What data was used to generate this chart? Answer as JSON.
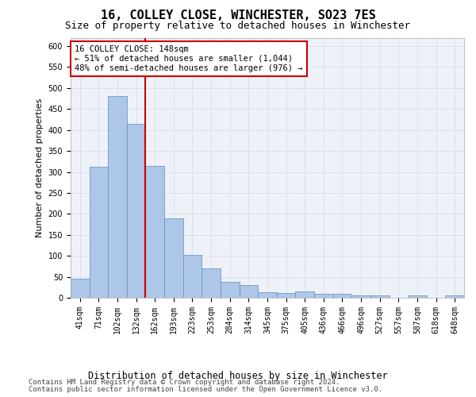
{
  "title": "16, COLLEY CLOSE, WINCHESTER, SO23 7ES",
  "subtitle": "Size of property relative to detached houses in Winchester",
  "xlabel": "Distribution of detached houses by size in Winchester",
  "ylabel": "Number of detached properties",
  "property_label": "16 COLLEY CLOSE: 148sqm",
  "annotation_line1": "← 51% of detached houses are smaller (1,044)",
  "annotation_line2": "48% of semi-detached houses are larger (976) →",
  "footer_line1": "Contains HM Land Registry data © Crown copyright and database right 2024.",
  "footer_line2": "Contains public sector information licensed under the Open Government Licence v3.0.",
  "bin_labels": [
    "41sqm",
    "71sqm",
    "102sqm",
    "132sqm",
    "162sqm",
    "193sqm",
    "223sqm",
    "253sqm",
    "284sqm",
    "314sqm",
    "345sqm",
    "375sqm",
    "405sqm",
    "436sqm",
    "466sqm",
    "496sqm",
    "527sqm",
    "557sqm",
    "587sqm",
    "618sqm",
    "648sqm"
  ],
  "bin_values": [
    46,
    312,
    480,
    415,
    314,
    190,
    103,
    70,
    37,
    30,
    14,
    12,
    15,
    10,
    9,
    5,
    5,
    0,
    5,
    0,
    5
  ],
  "bar_color": "#aec6e8",
  "bar_edge_color": "#5a8fc2",
  "vline_color": "#cc0000",
  "ylim": [
    0,
    620
  ],
  "yticks": [
    0,
    50,
    100,
    150,
    200,
    250,
    300,
    350,
    400,
    450,
    500,
    550,
    600
  ],
  "background_color": "#ffffff",
  "plot_bg_color": "#eef2f8",
  "grid_color": "#d0d8e8",
  "annotation_box_color": "#cc0000",
  "title_fontsize": 11,
  "subtitle_fontsize": 9,
  "xlabel_fontsize": 8.5,
  "ylabel_fontsize": 8,
  "tick_fontsize": 7,
  "annotation_fontsize": 7.5,
  "footer_fontsize": 6.5
}
